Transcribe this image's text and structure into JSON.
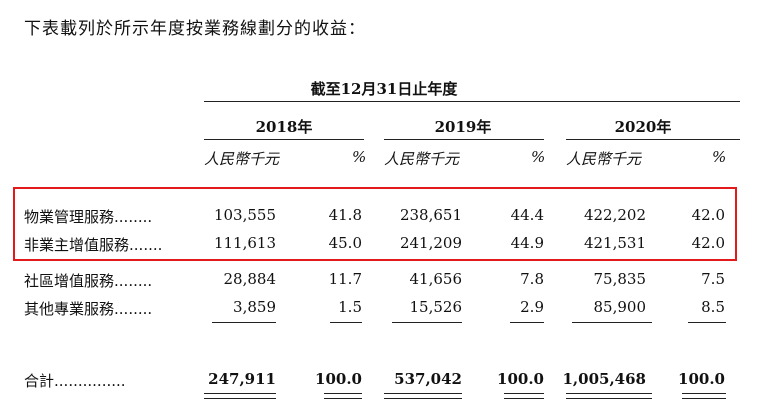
{
  "intro": "下表載列於所示年度按業務線劃分的收益：",
  "period_header": "截至12月31日止年度",
  "years": [
    "2018年",
    "2019年",
    "2020年"
  ],
  "subheaders": {
    "amount": "人民幣千元",
    "percent": "%"
  },
  "rows": [
    {
      "label": "物業管理服務",
      "leader": "........",
      "values": [
        "103,555",
        "41.8",
        "238,651",
        "44.4",
        "422,202",
        "42.0"
      ]
    },
    {
      "label": "非業主增值服務",
      "leader": ".......",
      "values": [
        "111,613",
        "45.0",
        "241,209",
        "44.9",
        "421,531",
        "42.0"
      ]
    },
    {
      "label": "社區增值服務",
      "leader": "........",
      "values": [
        "28,884",
        "11.7",
        "41,656",
        "7.8",
        "75,835",
        "7.5"
      ]
    },
    {
      "label": "其他專業服務",
      "leader": "........",
      "values": [
        "3,859",
        "1.5",
        "15,526",
        "2.9",
        "85,900",
        "8.5"
      ]
    }
  ],
  "total": {
    "label": "合計",
    "leader": "...............",
    "values": [
      "247,911",
      "100.0",
      "537,042",
      "100.0",
      "1,005,468",
      "100.0"
    ]
  },
  "highlight_color": "#e31a1c"
}
